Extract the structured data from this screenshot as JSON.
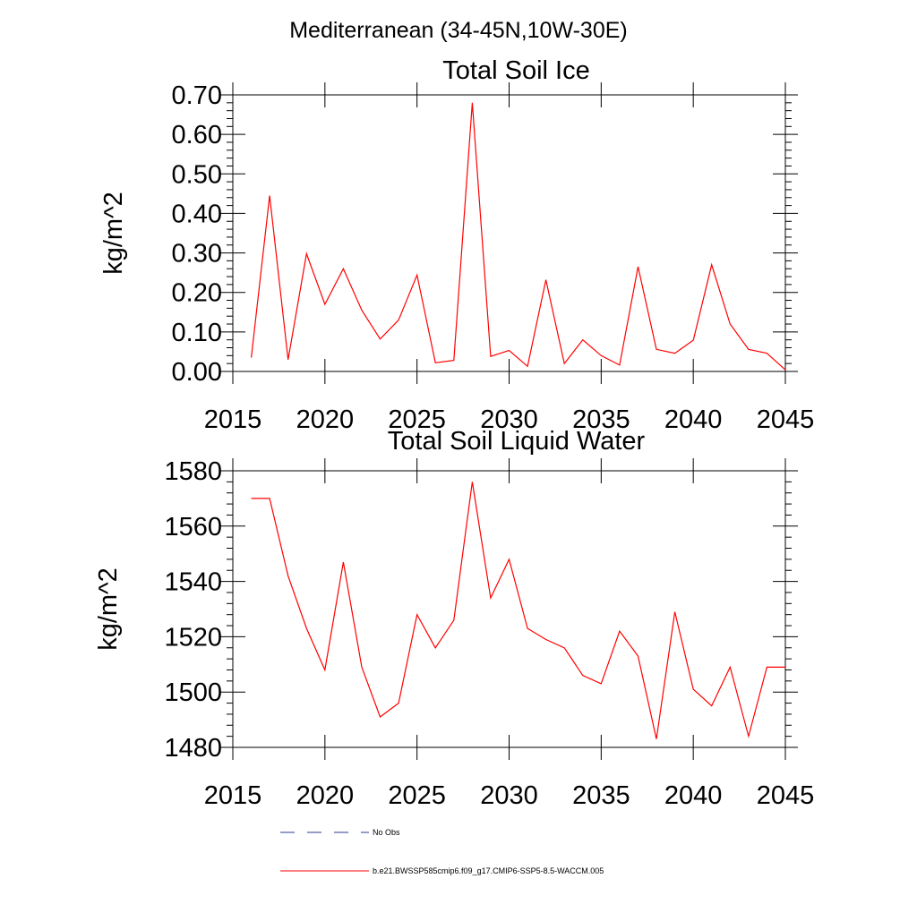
{
  "figure_title": "Mediterranean (34-45N,10W-30E)",
  "legend": {
    "entries": [
      {
        "label": "No Obs",
        "color": "#2b3a8c",
        "style": "dashed"
      },
      {
        "label": "b.e21.BWSSP585cmip6.f09_g17.CMIP6-SSP5-8.5-WACCM.005",
        "color": "#ff0000",
        "style": "solid"
      }
    ]
  },
  "chart_data": [
    {
      "type": "line",
      "title": "Total Soil Ice",
      "xlabel": "",
      "ylabel": "kg/m^2",
      "xlim": [
        2015,
        2045
      ],
      "ylim": [
        0.0,
        0.7
      ],
      "xticks": [
        2015,
        2020,
        2025,
        2030,
        2035,
        2040,
        2045
      ],
      "yticks": [
        0.0,
        0.1,
        0.2,
        0.3,
        0.4,
        0.5,
        0.6,
        0.7
      ],
      "ytick_labels": [
        "0.00",
        "0.10",
        "0.20",
        "0.30",
        "0.40",
        "0.50",
        "0.60",
        "0.70"
      ],
      "grid": false,
      "series": [
        {
          "name": "b.e21.BWSSP585cmip6.f09_g17.CMIP6-SSP5-8.5-WACCM.005",
          "color": "#ff0000",
          "x": [
            2016,
            2017,
            2018,
            2019,
            2020,
            2021,
            2022,
            2023,
            2024,
            2025,
            2026,
            2027,
            2028,
            2029,
            2030,
            2031,
            2032,
            2033,
            2034,
            2035,
            2036,
            2037,
            2038,
            2039,
            2040,
            2041,
            2042,
            2043,
            2044,
            2045
          ],
          "y": [
            0.035,
            0.445,
            0.03,
            0.298,
            0.17,
            0.26,
            0.155,
            0.082,
            0.13,
            0.244,
            0.022,
            0.028,
            0.68,
            0.038,
            0.053,
            0.013,
            0.232,
            0.02,
            0.08,
            0.04,
            0.016,
            0.265,
            0.056,
            0.046,
            0.079,
            0.27,
            0.12,
            0.056,
            0.046,
            0.004
          ]
        }
      ]
    },
    {
      "type": "line",
      "title": "Total Soil Liquid Water",
      "xlabel": "",
      "ylabel": "kg/m^2",
      "xlim": [
        2015,
        2045
      ],
      "ylim": [
        1480,
        1580
      ],
      "xticks": [
        2015,
        2020,
        2025,
        2030,
        2035,
        2040,
        2045
      ],
      "yticks": [
        1480,
        1500,
        1520,
        1540,
        1560,
        1580
      ],
      "ytick_labels": [
        "1480",
        "1500",
        "1520",
        "1540",
        "1560",
        "1580"
      ],
      "grid": false,
      "series": [
        {
          "name": "b.e21.BWSSP585cmip6.f09_g17.CMIP6-SSP5-8.5-WACCM.005",
          "color": "#ff0000",
          "x": [
            2016,
            2017,
            2018,
            2019,
            2020,
            2021,
            2022,
            2023,
            2024,
            2025,
            2026,
            2027,
            2028,
            2029,
            2030,
            2031,
            2032,
            2033,
            2034,
            2035,
            2036,
            2037,
            2038,
            2039,
            2040,
            2041,
            2042,
            2043,
            2044,
            2045
          ],
          "y": [
            1570,
            1570,
            1542,
            1523,
            1508,
            1547,
            1509,
            1491,
            1496,
            1528,
            1516,
            1526,
            1576,
            1534,
            1548,
            1523,
            1519,
            1516,
            1506,
            1503,
            1522,
            1513,
            1483,
            1529,
            1501,
            1495,
            1509,
            1484,
            1509,
            1509
          ]
        }
      ]
    }
  ]
}
